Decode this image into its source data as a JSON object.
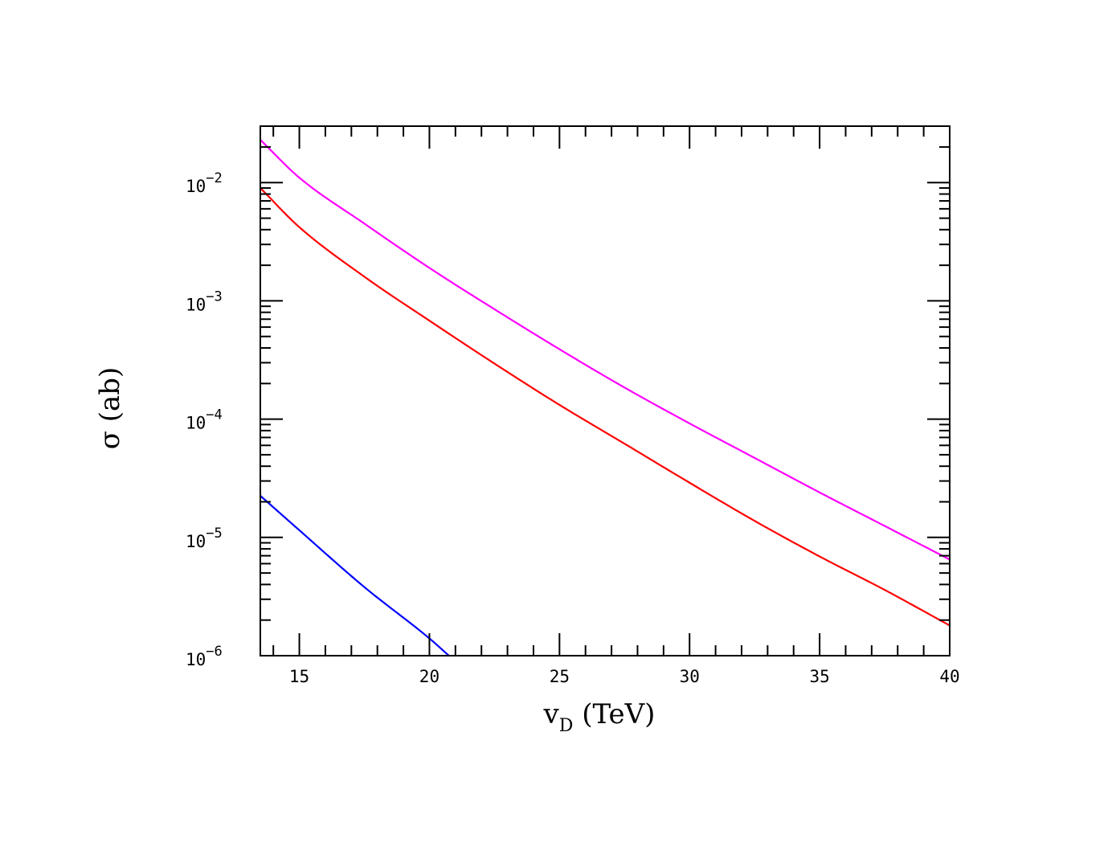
{
  "chart_data": {
    "type": "line",
    "xlabel": {
      "main": "v",
      "sub": "D",
      "rest": " (TeV)"
    },
    "ylabel": "σ (ab)",
    "xlim": [
      13.5,
      40
    ],
    "ylim": [
      1e-06,
      0.03
    ],
    "yscale": "log",
    "grid": false,
    "x_ticks": [
      15,
      20,
      25,
      30,
      35,
      40
    ],
    "y_ticks": [
      {
        "base": "10",
        "exp": "−2",
        "value": 0.01
      },
      {
        "base": "10",
        "exp": "−3",
        "value": 0.001
      },
      {
        "base": "10",
        "exp": "−4",
        "value": 0.0001
      },
      {
        "base": "10",
        "exp": "−5",
        "value": 1e-05
      },
      {
        "base": "10",
        "exp": "−6",
        "value": 1e-06
      }
    ],
    "series": [
      {
        "color": "#ff00ff",
        "x": [
          13.5,
          15,
          17.5,
          20,
          22.5,
          25,
          27.5,
          30,
          32.5,
          35,
          37.5,
          40
        ],
        "y": [
          0.023,
          0.011,
          0.0045,
          0.0019,
          0.00085,
          0.00039,
          0.000185,
          9.2e-05,
          4.7e-05,
          2.4e-05,
          1.25e-05,
          6.5e-06
        ]
      },
      {
        "color": "#ff0000",
        "x": [
          13.5,
          15,
          17.5,
          20,
          22.5,
          25,
          27.5,
          30,
          32.5,
          35,
          37.5,
          40
        ],
        "y": [
          0.009,
          0.0042,
          0.0016,
          0.00068,
          0.000295,
          0.000132,
          6.2e-05,
          2.9e-05,
          1.38e-05,
          6.9e-06,
          3.6e-06,
          1.8e-06
        ]
      },
      {
        "color": "#0000ff",
        "x": [
          13.5,
          15,
          17.5,
          20,
          20.75
        ],
        "y": [
          2.25e-05,
          1.15e-05,
          3.8e-06,
          1.4e-06,
          1e-06
        ]
      }
    ]
  }
}
